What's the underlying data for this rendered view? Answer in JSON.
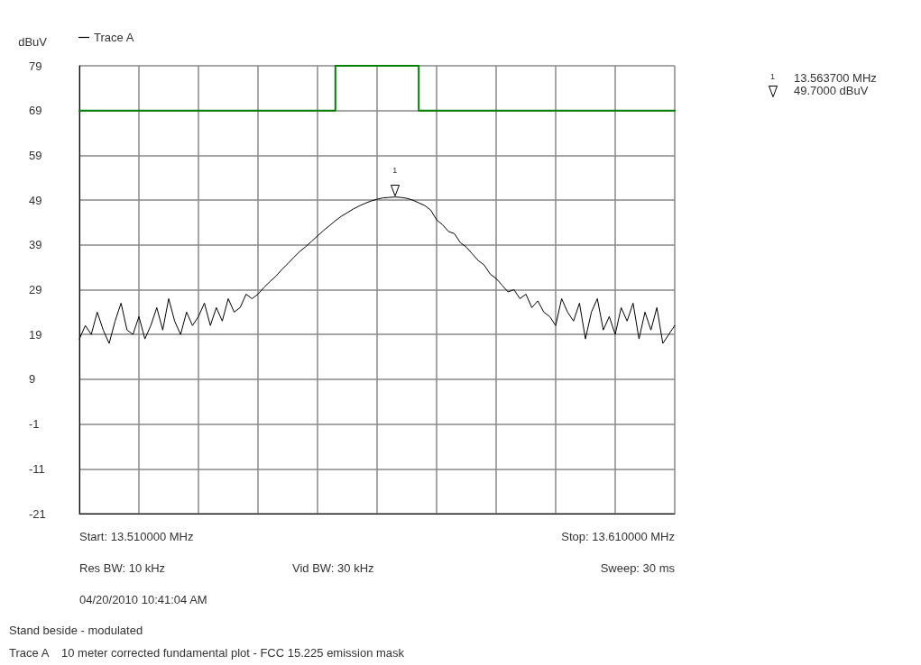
{
  "chart_data": {
    "type": "line",
    "ylabel": "dBuV",
    "categories": [
      null,
      null,
      null,
      null,
      null,
      null,
      null,
      null,
      null,
      null,
      null,
      null,
      null,
      null,
      null,
      null,
      null,
      null,
      null,
      null,
      null,
      null,
      null,
      null,
      null,
      null,
      null,
      null,
      null,
      null,
      null,
      null,
      null,
      null,
      null,
      null,
      null,
      null,
      null,
      null,
      null,
      null,
      null,
      null,
      null,
      null,
      null,
      null,
      null,
      null,
      null,
      null,
      null,
      null,
      null,
      null,
      null,
      null,
      null,
      null,
      null,
      null,
      null,
      null,
      null,
      null,
      null,
      null,
      null,
      null,
      null,
      null,
      null,
      null,
      null,
      null,
      null,
      null,
      null,
      null,
      null,
      null,
      null,
      null,
      null,
      null,
      null,
      null,
      null,
      null,
      null,
      null,
      null,
      null,
      null,
      null,
      null,
      null,
      null,
      null,
      null
    ],
    "ylim": [
      -21,
      79
    ],
    "yticks": [
      -21,
      -11,
      -1,
      9,
      19,
      29,
      39,
      49,
      59,
      69,
      79
    ],
    "grid": true,
    "legend": "top left",
    "tick_labels": "y",
    "line_style": "solid",
    "series": [
      {
        "name": "Trace A",
        "color": "#000000",
        "values": [
          18,
          21,
          19,
          24,
          20,
          17,
          22,
          26,
          20,
          19,
          23,
          18,
          21,
          25,
          20,
          27,
          22,
          19,
          24,
          21,
          23,
          26,
          21,
          25,
          22,
          27,
          24,
          25,
          28,
          27,
          28,
          29.5,
          30.8,
          32,
          33.5,
          34.8,
          36.2,
          37.5,
          38.6,
          39.8,
          41,
          42.2,
          43.3,
          44.4,
          45.4,
          46.2,
          47,
          47.7,
          48.3,
          48.8,
          49.2,
          49.5,
          49.6,
          49.7,
          49.6,
          49.4,
          49,
          48.4,
          47.8,
          46.8,
          44.6,
          43.5,
          42,
          41.5,
          39.5,
          38.5,
          37,
          35.5,
          34.5,
          32.5,
          31.5,
          30,
          28.5,
          29,
          27,
          28,
          25,
          26.5,
          24,
          23,
          21,
          27,
          24,
          22,
          26,
          18,
          24,
          27,
          20,
          23,
          19,
          25,
          22,
          26,
          18,
          24,
          20,
          25,
          17,
          19,
          21
        ]
      },
      {
        "type": "step",
        "color": "#008000",
        "values": [
          69,
          69,
          69,
          69,
          69,
          69,
          69,
          69,
          69,
          69,
          69,
          69,
          69,
          69,
          69,
          69,
          69,
          69,
          69,
          69,
          69,
          69,
          69,
          69,
          69,
          69,
          69,
          69,
          69,
          69,
          69,
          69,
          69,
          69,
          69,
          69,
          69,
          69,
          69,
          69,
          69,
          69,
          69,
          79,
          79,
          79,
          79,
          79,
          79,
          79,
          79,
          79,
          79,
          79,
          79,
          79,
          79,
          69,
          69,
          69,
          69,
          69,
          69,
          69,
          69,
          69,
          69,
          69,
          69,
          69,
          69,
          69,
          69,
          69,
          69,
          69,
          69,
          69,
          69,
          69,
          69,
          69,
          69,
          69,
          69,
          69,
          69,
          69,
          69,
          69,
          69,
          69,
          69,
          69,
          69,
          69,
          69,
          69,
          69,
          69,
          69
        ]
      }
    ],
    "annotations": [
      "Start: 13.510000 MHz",
      "Stop: 13.610000 MHz",
      "Res BW: 10 kHz",
      "Vid BW: 30 kHz",
      "Sweep: 30 ms",
      "04/20/2010 10:41:04 AM",
      "Stand beside - modulated",
      "Trace A    10 meter corrected fundamental plot - FCC 15.225 emission mask",
      "1",
      "13.563700 MHz",
      "49.7000 dBuV",
      "1"
    ]
  }
}
